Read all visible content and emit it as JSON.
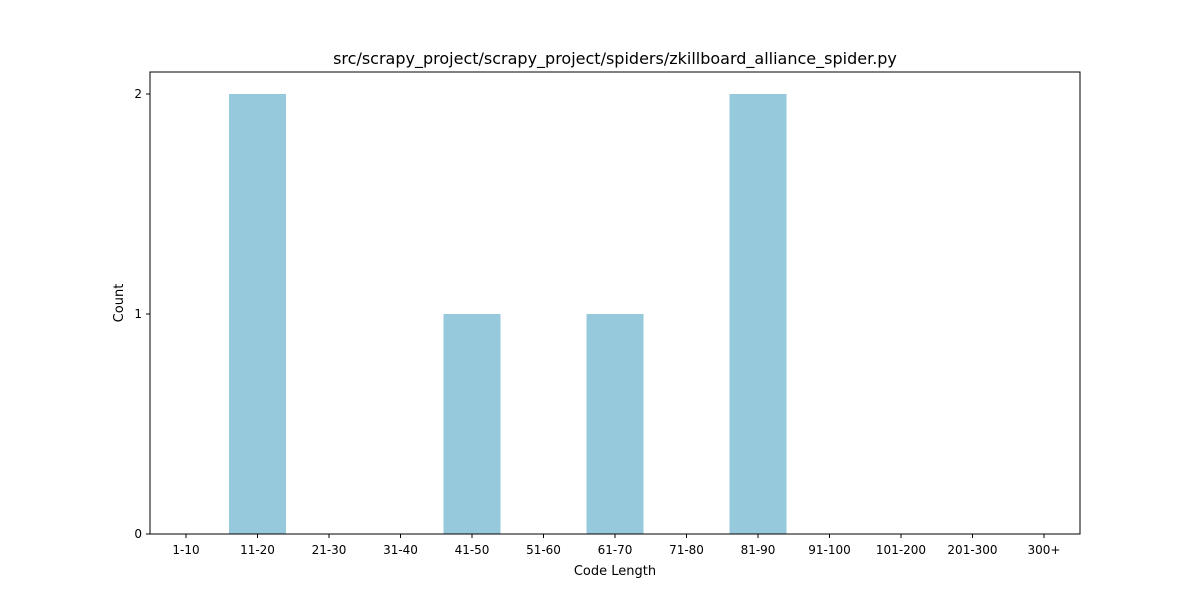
{
  "chart_data": {
    "type": "bar",
    "title": "src/scrapy_project/scrapy_project/spiders/zkillboard_alliance_spider.py",
    "xlabel": "Code Length",
    "ylabel": "Count",
    "categories": [
      "1-10",
      "11-20",
      "21-30",
      "31-40",
      "41-50",
      "51-60",
      "61-70",
      "71-80",
      "81-90",
      "91-100",
      "101-200",
      "201-300",
      "300+"
    ],
    "values": [
      0,
      2,
      0,
      0,
      1,
      0,
      1,
      0,
      2,
      0,
      0,
      0,
      0
    ],
    "ylim": [
      0,
      2.1
    ],
    "yticks": [
      0,
      1,
      2
    ],
    "bar_color": "#96c9dc",
    "grid": false,
    "legend": "none"
  }
}
